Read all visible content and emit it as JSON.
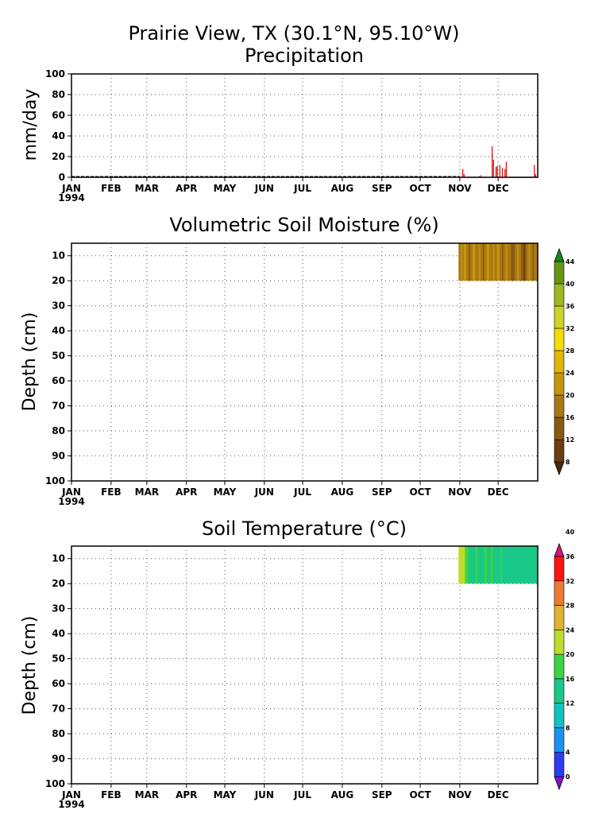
{
  "figure": {
    "title_line1": "Prairie View, TX (30.1°N, 95.10°W)",
    "title_line2": "Precipitation"
  },
  "months": [
    "JAN",
    "FEB",
    "MAR",
    "APR",
    "MAY",
    "JUN",
    "JUL",
    "AUG",
    "SEP",
    "OCT",
    "NOV",
    "DEC"
  ],
  "year_label": "1994",
  "chart_data": [
    {
      "type": "bar",
      "title": "Precipitation",
      "ylabel": "mm/day",
      "ylim": [
        0,
        100
      ],
      "yticks": [
        0,
        20,
        40,
        60,
        80,
        100
      ],
      "grid": true,
      "color": "#e00000",
      "x_unit": "day of year 1994",
      "x": [
        305,
        306,
        307,
        308,
        309,
        310,
        311,
        312,
        313,
        314,
        315,
        316,
        317,
        318,
        319,
        320,
        321,
        322,
        323,
        324,
        325,
        326,
        327,
        328,
        329,
        330,
        331,
        332,
        333,
        334,
        335,
        336,
        337,
        338,
        339,
        340,
        341,
        342,
        343,
        344,
        345,
        346,
        347,
        348,
        349,
        350,
        351,
        352,
        353,
        354,
        355,
        356,
        357,
        358,
        359,
        360,
        361,
        362,
        363,
        364,
        365
      ],
      "values": [
        0,
        0,
        8,
        3,
        0,
        0,
        0,
        0,
        0,
        0,
        0,
        0,
        0,
        0,
        0,
        1,
        2,
        0,
        0,
        0,
        0,
        0,
        0,
        0,
        0,
        30,
        17,
        0,
        10,
        11,
        0,
        12,
        0,
        9,
        0,
        8,
        15,
        0,
        0,
        0,
        0,
        0,
        0,
        0,
        0,
        0,
        0,
        0,
        0,
        0,
        0,
        0,
        0,
        0,
        0,
        0,
        0,
        0,
        12,
        3,
        0
      ]
    },
    {
      "type": "heatmap",
      "title": "Volumetric Soil Moisture (%)",
      "ylabel": "Depth (cm)",
      "ylim": [
        100,
        5
      ],
      "yticks": [
        10,
        20,
        30,
        40,
        50,
        60,
        70,
        80,
        90,
        100
      ],
      "grid": true,
      "colorbar": {
        "levels": [
          8,
          12,
          16,
          20,
          24,
          28,
          32,
          36,
          40,
          44
        ],
        "colors": [
          "#4a2a0a",
          "#6b3d10",
          "#8a5a12",
          "#a97914",
          "#c8960a",
          "#e1b800",
          "#f5dc00",
          "#cbd428",
          "#9fb81e",
          "#6a9412",
          "#13871e"
        ]
      },
      "depth_rows": [
        {
          "top": 5,
          "bottom": 20,
          "day_start": 304,
          "values": [
            18,
            18,
            20,
            18,
            20,
            21,
            18,
            16,
            14,
            16,
            18,
            21,
            20,
            17,
            16,
            18,
            20,
            18,
            16,
            14,
            16,
            18,
            20,
            21,
            18,
            16,
            18,
            20,
            18,
            16,
            20,
            21,
            18,
            16,
            14,
            16,
            18,
            20,
            18,
            17,
            16,
            14,
            12,
            14,
            16,
            18,
            20,
            18,
            16,
            14,
            12,
            10,
            12,
            16,
            18,
            20,
            18,
            16,
            14,
            16,
            18,
            18
          ]
        }
      ]
    },
    {
      "type": "heatmap",
      "title": "Soil Temperature (°C)",
      "ylabel": "Depth (cm)",
      "ylim": [
        100,
        5
      ],
      "yticks": [
        10,
        20,
        30,
        40,
        50,
        60,
        70,
        80,
        90,
        100
      ],
      "grid": true,
      "colorbar": {
        "levels": [
          0,
          4,
          8,
          12,
          16,
          20,
          24,
          28,
          32,
          36,
          40
        ],
        "colors": [
          "#7e14c8",
          "#2c3cf0",
          "#1a92f0",
          "#12c2c2",
          "#1ac88a",
          "#3cd446",
          "#bedc2a",
          "#e0b232",
          "#ec7c32",
          "#ff1414",
          "#d41478"
        ]
      },
      "depth_rows": [
        {
          "top": 5,
          "bottom": 20,
          "day_start": 304,
          "values": [
            20,
            20,
            21,
            22,
            20,
            18,
            17,
            16,
            15,
            15,
            14,
            14,
            15,
            16,
            16,
            15,
            15,
            14,
            14,
            15,
            16,
            16,
            15,
            14,
            14,
            16,
            16,
            15,
            14,
            14,
            15,
            14,
            14,
            16,
            15,
            14,
            14,
            13,
            14,
            14,
            15,
            15,
            14,
            14,
            15,
            14,
            14,
            13,
            13,
            14,
            15,
            15,
            14,
            14,
            14,
            14,
            14,
            14,
            14,
            14,
            14,
            14
          ]
        }
      ]
    }
  ]
}
